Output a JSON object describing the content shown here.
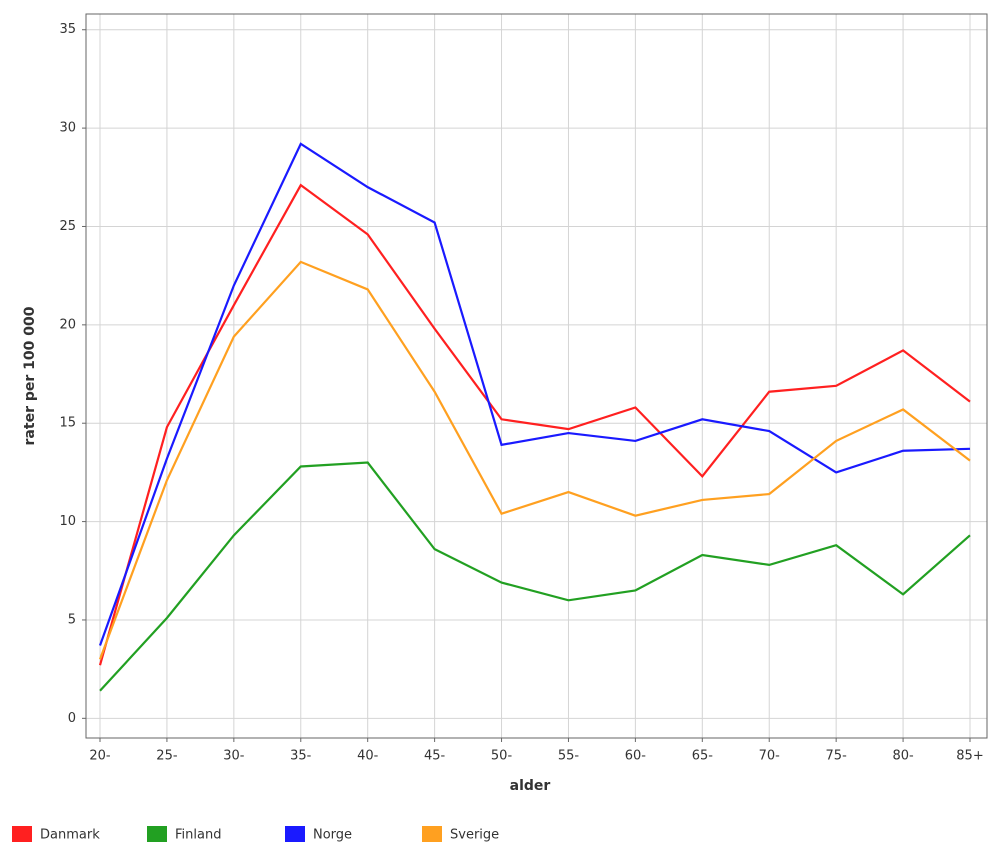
{
  "chart_data": {
    "type": "line",
    "x_label": "alder",
    "y_label": "rater per 100 000",
    "categories": [
      "20-",
      "25-",
      "30-",
      "35-",
      "40-",
      "45-",
      "50-",
      "55-",
      "60-",
      "65-",
      "70-",
      "75-",
      "80-",
      "85+"
    ],
    "series": [
      {
        "name": "Danmark",
        "color": "#ff2020",
        "values": [
          2.7,
          14.8,
          21.0,
          27.1,
          24.6,
          19.8,
          15.2,
          14.7,
          15.8,
          12.3,
          16.6,
          16.9,
          18.7,
          16.1
        ]
      },
      {
        "name": "Finland",
        "color": "#22a022",
        "values": [
          1.4,
          5.1,
          9.3,
          12.8,
          13.0,
          8.6,
          6.9,
          6.0,
          6.5,
          8.3,
          7.8,
          8.8,
          6.3,
          9.3
        ]
      },
      {
        "name": "Norge",
        "color": "#1a1aff",
        "values": [
          3.7,
          13.2,
          22.0,
          29.2,
          27.0,
          25.2,
          13.9,
          14.5,
          14.1,
          15.2,
          14.6,
          12.5,
          13.6,
          13.7
        ]
      },
      {
        "name": "Sverige",
        "color": "#ffa020",
        "values": [
          3.0,
          12.1,
          19.4,
          23.2,
          21.8,
          16.6,
          10.4,
          11.5,
          10.3,
          11.1,
          11.4,
          14.1,
          15.7,
          13.1
        ]
      }
    ],
    "ylim": [
      -1,
      35.8
    ],
    "yticks": [
      0,
      5,
      10,
      15,
      20,
      25,
      30,
      35
    ],
    "grid": true
  }
}
